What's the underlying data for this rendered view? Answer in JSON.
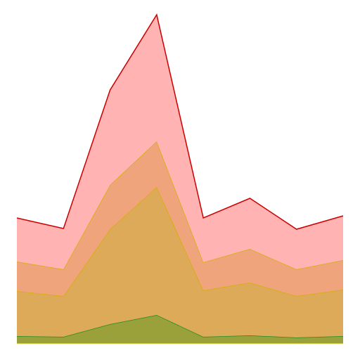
{
  "chart_data": {
    "type": "area",
    "stacked": true,
    "x": [
      0,
      1,
      2,
      3,
      4,
      5,
      6,
      7
    ],
    "ylim": [
      0,
      466
    ],
    "grid": false,
    "legend": "none",
    "series": [
      {
        "values": [
          0,
          0,
          0,
          0,
          0,
          0,
          0,
          0
        ],
        "fill": "#e8d84a",
        "stroke": "#b8b800"
      },
      {
        "values": [
          10,
          9,
          27,
          40,
          9,
          11,
          8,
          10
        ],
        "fill": "#9aa03a",
        "stroke": "#228b22"
      },
      {
        "values": [
          64,
          58,
          135,
          182,
          66,
          75,
          59,
          66
        ],
        "fill": "#dcaa58",
        "stroke": "#d4b000"
      },
      {
        "values": [
          42,
          38,
          63,
          65,
          40,
          48,
          38,
          42
        ],
        "fill": "#f0a47c",
        "stroke": "#d4b000"
      },
      {
        "values": [
          62,
          58,
          135,
          180,
          63,
          72,
          57,
          63
        ],
        "fill": "#ffb3b3",
        "stroke": "#cc0000"
      }
    ]
  }
}
